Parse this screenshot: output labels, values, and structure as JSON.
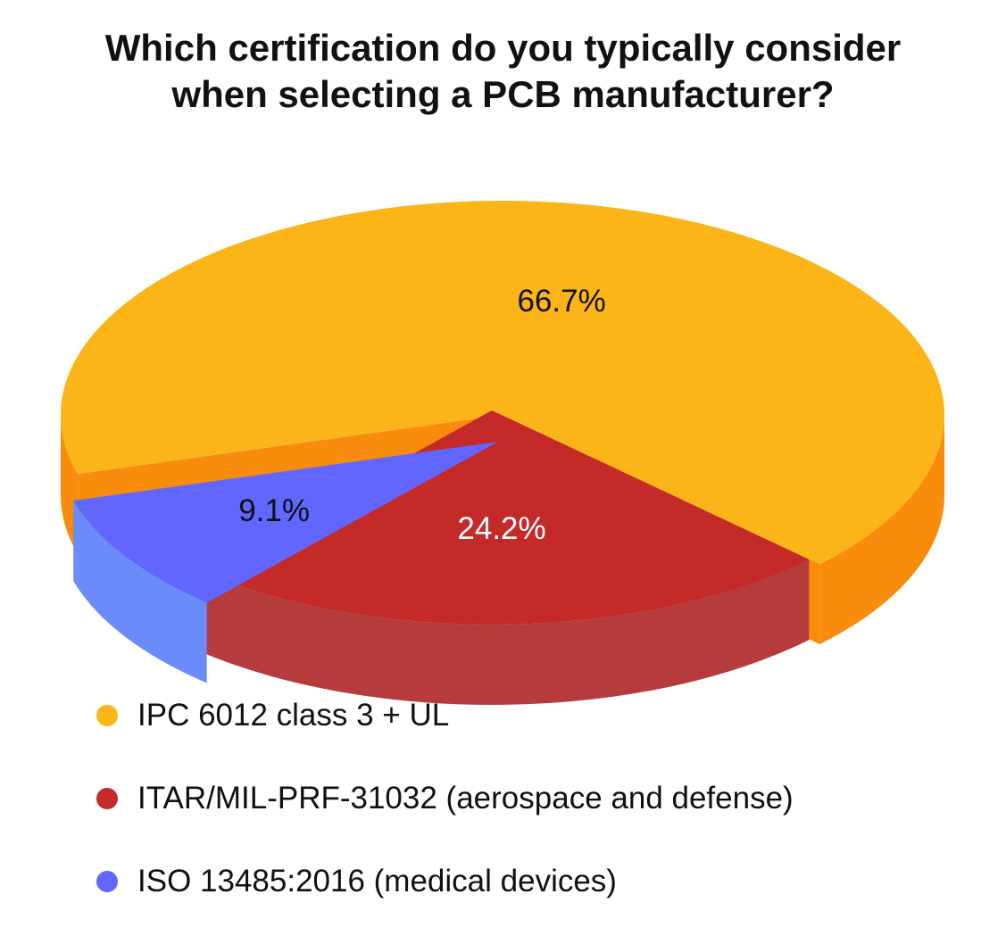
{
  "chart_data": {
    "type": "pie",
    "title": [
      "Which certification do you typically consider",
      "when selecting a PCB manufacturer?"
    ],
    "slices": [
      {
        "label": "IPC 6012 class 3 + UL",
        "value": 66.7,
        "display": "66.7%",
        "color": "#FBB519",
        "side_color": "#F98C0C",
        "label_color": "#111111"
      },
      {
        "label": "ITAR/MIL-PRF-31032 (aerospace and defense)",
        "value": 24.2,
        "display": "24.2%",
        "color": "#C42A27",
        "side_color": "#B53B3C",
        "label_color": "#FFFFFF"
      },
      {
        "label": "ISO 13485:2016 (medical devices)",
        "value": 9.1,
        "display": "9.1%",
        "color": "#6167FE",
        "side_color": "#6A8CFB",
        "label_color": "#111111"
      }
    ],
    "legend_position": "bottom-left",
    "style": "3d-exploded"
  }
}
